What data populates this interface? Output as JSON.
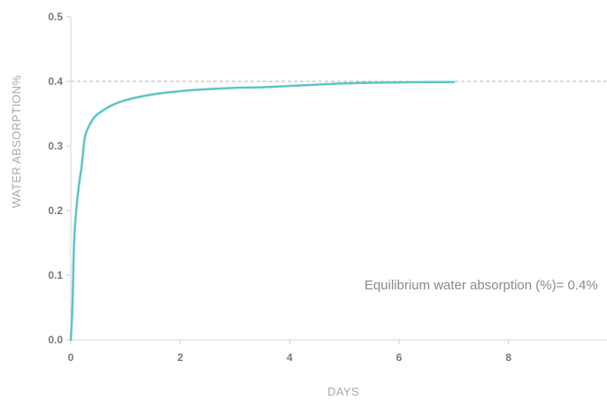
{
  "chart_data": {
    "type": "line",
    "xlabel": "DAYS",
    "ylabel": "WATER ABSORPTION%",
    "xlim": [
      0,
      9.8
    ],
    "ylim": [
      0,
      0.5
    ],
    "x_ticks": [
      0,
      2,
      4,
      6,
      8
    ],
    "y_ticks": [
      0.0,
      0.1,
      0.2,
      0.3,
      0.4,
      0.5
    ],
    "x_tick_labels": [
      "0",
      "2",
      "4",
      "6",
      "8"
    ],
    "y_tick_labels": [
      "0.0",
      "0.1",
      "0.2",
      "0.3",
      "0.4",
      "0.5"
    ],
    "grid": false,
    "reference_line": {
      "y": 0.4,
      "style": "dashed",
      "color": "#b0b0b0"
    },
    "series": [
      {
        "color": "#5cc5c6",
        "x": [
          0,
          0.03,
          0.06,
          0.1,
          0.15,
          0.2,
          0.25,
          0.3,
          0.4,
          0.5,
          0.75,
          1.0,
          1.5,
          2.0,
          2.5,
          3.0,
          3.5,
          4.0,
          4.5,
          5.0,
          5.5,
          6.0,
          6.5,
          7.0
        ],
        "y": [
          0,
          0.05,
          0.15,
          0.2,
          0.24,
          0.27,
          0.31,
          0.325,
          0.341,
          0.35,
          0.363,
          0.371,
          0.38,
          0.385,
          0.388,
          0.39,
          0.391,
          0.393,
          0.395,
          0.397,
          0.398,
          0.3985,
          0.399,
          0.399
        ]
      }
    ],
    "annotations": [
      {
        "text": "Equilibrium water absorption (%)= 0.4%",
        "x": 7.5,
        "y": 0.078
      }
    ]
  }
}
